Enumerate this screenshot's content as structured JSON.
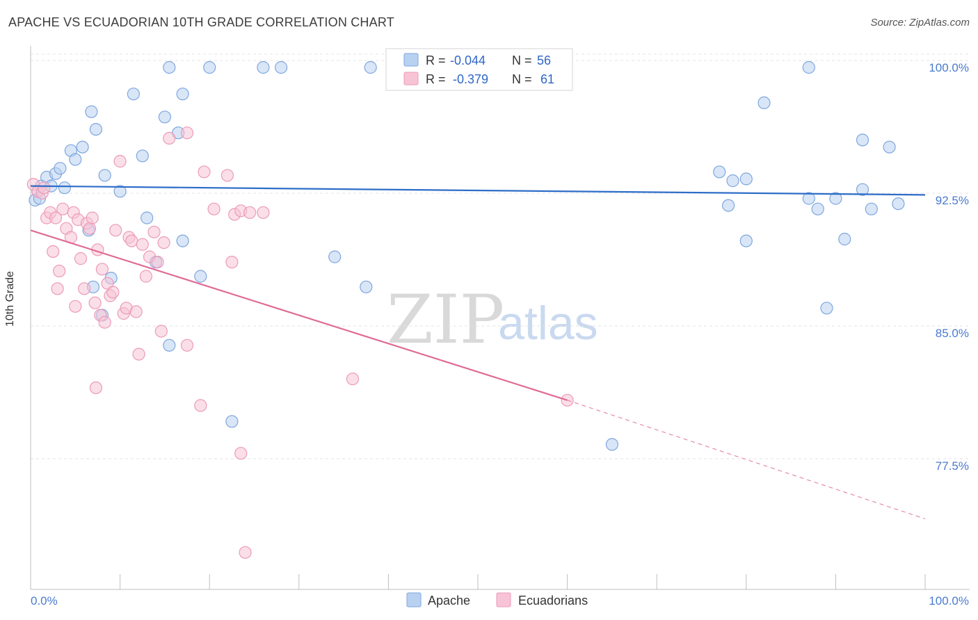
{
  "title": "APACHE VS ECUADORIAN 10TH GRADE CORRELATION CHART",
  "source": "Source: ZipAtlas.com",
  "watermark": {
    "zip": "ZIP",
    "atlas": "atlas"
  },
  "colors": {
    "apache_fill": "#b9d1f1",
    "apache_stroke": "#7ea6de",
    "apache_line": "#2d6dc8",
    "ecua_fill": "#f7c4d6",
    "ecua_stroke": "#ec9ab8",
    "ecua_line": "#e06b96"
  },
  "legend": {
    "apache": {
      "r_label": "R =",
      "r_value": "-0.044",
      "n_label": "N =",
      "n_value": "56"
    },
    "ecua": {
      "r_label": "R =",
      "r_value": "-0.379",
      "n_label": "N =",
      "n_value": "61"
    }
  },
  "bottom_legend": {
    "apache": "Apache",
    "ecua": "Ecuadorians"
  },
  "chart_data": {
    "type": "scatter",
    "title": "APACHE VS ECUADORIAN 10TH GRADE CORRELATION CHART",
    "xlabel": "",
    "ylabel": "10th Grade",
    "xlim": [
      0,
      100
    ],
    "ylim": [
      71.0,
      101.0
    ],
    "x_tick_labels": [
      "0.0%",
      "100.0%"
    ],
    "y_ticks": [
      77.5,
      85.0,
      92.5,
      100.0
    ],
    "y_tick_labels": [
      "77.5%",
      "85.0%",
      "92.5%",
      "100.0%"
    ],
    "grid": true,
    "series": [
      {
        "name": "Apache",
        "trend": {
          "x": [
            0,
            100
          ],
          "y": [
            93.3,
            92.8
          ]
        },
        "points": [
          [
            0.5,
            92.5
          ],
          [
            0.8,
            93.0
          ],
          [
            1.2,
            93.3
          ],
          [
            1.8,
            93.8
          ],
          [
            2.3,
            93.3
          ],
          [
            2.8,
            94.0
          ],
          [
            3.3,
            94.3
          ],
          [
            3.8,
            93.2
          ],
          [
            4.5,
            95.3
          ],
          [
            5.0,
            94.8
          ],
          [
            5.8,
            95.5
          ],
          [
            6.8,
            97.5
          ],
          [
            7.3,
            96.5
          ],
          [
            8.3,
            93.9
          ],
          [
            10.0,
            93.0
          ],
          [
            11.5,
            98.5
          ],
          [
            12.5,
            95.0
          ],
          [
            15.0,
            97.2
          ],
          [
            16.5,
            96.3
          ],
          [
            17.0,
            98.5
          ],
          [
            15.5,
            100.0
          ],
          [
            20.0,
            100.0
          ],
          [
            26.0,
            100.0
          ],
          [
            28.0,
            100.0
          ],
          [
            38.0,
            100.0
          ],
          [
            13.0,
            91.5
          ],
          [
            17.0,
            90.2
          ],
          [
            9.0,
            88.1
          ],
          [
            7.0,
            87.6
          ],
          [
            8.0,
            86.0
          ],
          [
            14.0,
            89.0
          ],
          [
            19.0,
            88.2
          ],
          [
            6.5,
            90.8
          ],
          [
            15.5,
            84.3
          ],
          [
            22.5,
            80.0
          ],
          [
            34.0,
            89.3
          ],
          [
            37.5,
            87.6
          ],
          [
            65.0,
            78.7
          ],
          [
            77.0,
            94.1
          ],
          [
            78.5,
            93.6
          ],
          [
            80.0,
            93.7
          ],
          [
            82.0,
            98.0
          ],
          [
            78.0,
            92.2
          ],
          [
            80.0,
            90.2
          ],
          [
            87.0,
            92.6
          ],
          [
            88.0,
            92.0
          ],
          [
            89.0,
            86.4
          ],
          [
            90.0,
            92.6
          ],
          [
            91.0,
            90.3
          ],
          [
            93.0,
            93.1
          ],
          [
            93.0,
            95.9
          ],
          [
            94.0,
            92.0
          ],
          [
            96.0,
            95.5
          ],
          [
            97.0,
            92.3
          ],
          [
            87.0,
            100.0
          ],
          [
            1.0,
            92.6
          ]
        ]
      },
      {
        "name": "Ecuadorians",
        "trend": {
          "x": [
            0,
            60
          ],
          "y": [
            90.8,
            81.2
          ]
        },
        "trend_dashed": {
          "x": [
            60,
            100
          ],
          "y": [
            81.2,
            74.5
          ]
        },
        "points": [
          [
            0.3,
            93.4
          ],
          [
            0.8,
            93.0
          ],
          [
            1.3,
            92.9
          ],
          [
            1.8,
            91.5
          ],
          [
            2.2,
            91.8
          ],
          [
            2.5,
            89.6
          ],
          [
            2.8,
            91.5
          ],
          [
            3.0,
            87.5
          ],
          [
            3.2,
            88.5
          ],
          [
            3.6,
            92.0
          ],
          [
            4.0,
            90.9
          ],
          [
            4.5,
            90.4
          ],
          [
            4.8,
            91.8
          ],
          [
            5.0,
            86.5
          ],
          [
            5.3,
            91.4
          ],
          [
            5.6,
            89.2
          ],
          [
            6.0,
            87.5
          ],
          [
            6.3,
            91.2
          ],
          [
            6.6,
            90.9
          ],
          [
            6.9,
            91.5
          ],
          [
            7.2,
            86.7
          ],
          [
            7.5,
            89.7
          ],
          [
            7.8,
            86.0
          ],
          [
            8.0,
            88.6
          ],
          [
            8.3,
            85.6
          ],
          [
            8.6,
            87.8
          ],
          [
            8.9,
            87.1
          ],
          [
            9.2,
            87.3
          ],
          [
            9.5,
            90.8
          ],
          [
            10.0,
            94.7
          ],
          [
            10.4,
            86.1
          ],
          [
            10.7,
            86.4
          ],
          [
            11.0,
            90.4
          ],
          [
            11.3,
            90.2
          ],
          [
            11.8,
            86.2
          ],
          [
            12.1,
            83.8
          ],
          [
            12.5,
            90.0
          ],
          [
            12.9,
            88.2
          ],
          [
            13.3,
            89.3
          ],
          [
            13.8,
            90.7
          ],
          [
            14.2,
            89.0
          ],
          [
            14.6,
            85.1
          ],
          [
            14.9,
            90.1
          ],
          [
            15.5,
            96.0
          ],
          [
            17.5,
            96.3
          ],
          [
            19.0,
            80.9
          ],
          [
            19.4,
            94.1
          ],
          [
            20.5,
            92.0
          ],
          [
            22.0,
            93.9
          ],
          [
            22.5,
            89.0
          ],
          [
            22.8,
            91.7
          ],
          [
            23.5,
            91.9
          ],
          [
            24.0,
            72.6
          ],
          [
            24.5,
            91.8
          ],
          [
            26.0,
            91.8
          ],
          [
            23.5,
            78.2
          ],
          [
            17.5,
            84.3
          ],
          [
            7.3,
            81.9
          ],
          [
            36.0,
            82.4
          ],
          [
            60.0,
            81.2
          ],
          [
            1.5,
            93.2
          ]
        ]
      }
    ]
  }
}
